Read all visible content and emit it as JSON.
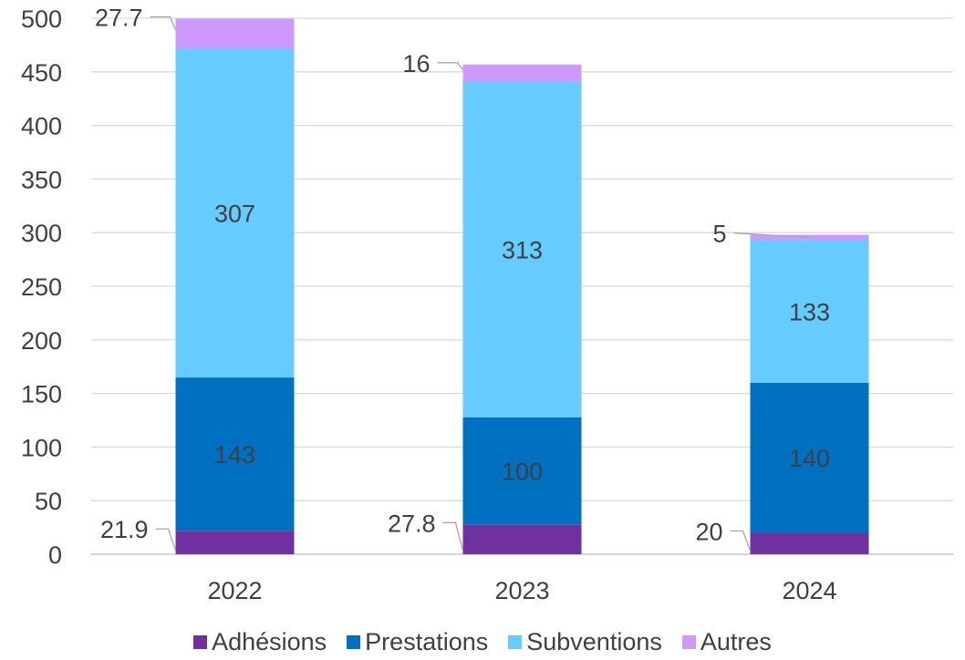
{
  "chart_data": {
    "type": "bar",
    "stacked": true,
    "categories": [
      "2022",
      "2023",
      "2024"
    ],
    "series": [
      {
        "name": "Adhésions",
        "values": [
          21.9,
          27.8,
          20
        ],
        "color": "#7030A0",
        "labels": [
          "21.9",
          "27.8",
          "20"
        ]
      },
      {
        "name": "Prestations",
        "values": [
          143,
          100,
          140
        ],
        "color": "#0070C0",
        "labels": [
          "143",
          "100",
          "140"
        ]
      },
      {
        "name": "Subventions",
        "values": [
          307,
          313,
          133
        ],
        "color": "#66CCFF",
        "labels": [
          "307",
          "313",
          "133"
        ]
      },
      {
        "name": "Autres",
        "values": [
          27.7,
          16,
          5
        ],
        "color": "#CC99FF",
        "labels": [
          "27.7",
          "16",
          "5"
        ]
      }
    ],
    "ylim": [
      0,
      500
    ],
    "yticks": [
      "0",
      "50",
      "100",
      "150",
      "200",
      "250",
      "300",
      "350",
      "400",
      "450",
      "500"
    ],
    "grid": true,
    "legend_position": "bottom",
    "title": "",
    "xlabel": "",
    "ylabel": ""
  }
}
